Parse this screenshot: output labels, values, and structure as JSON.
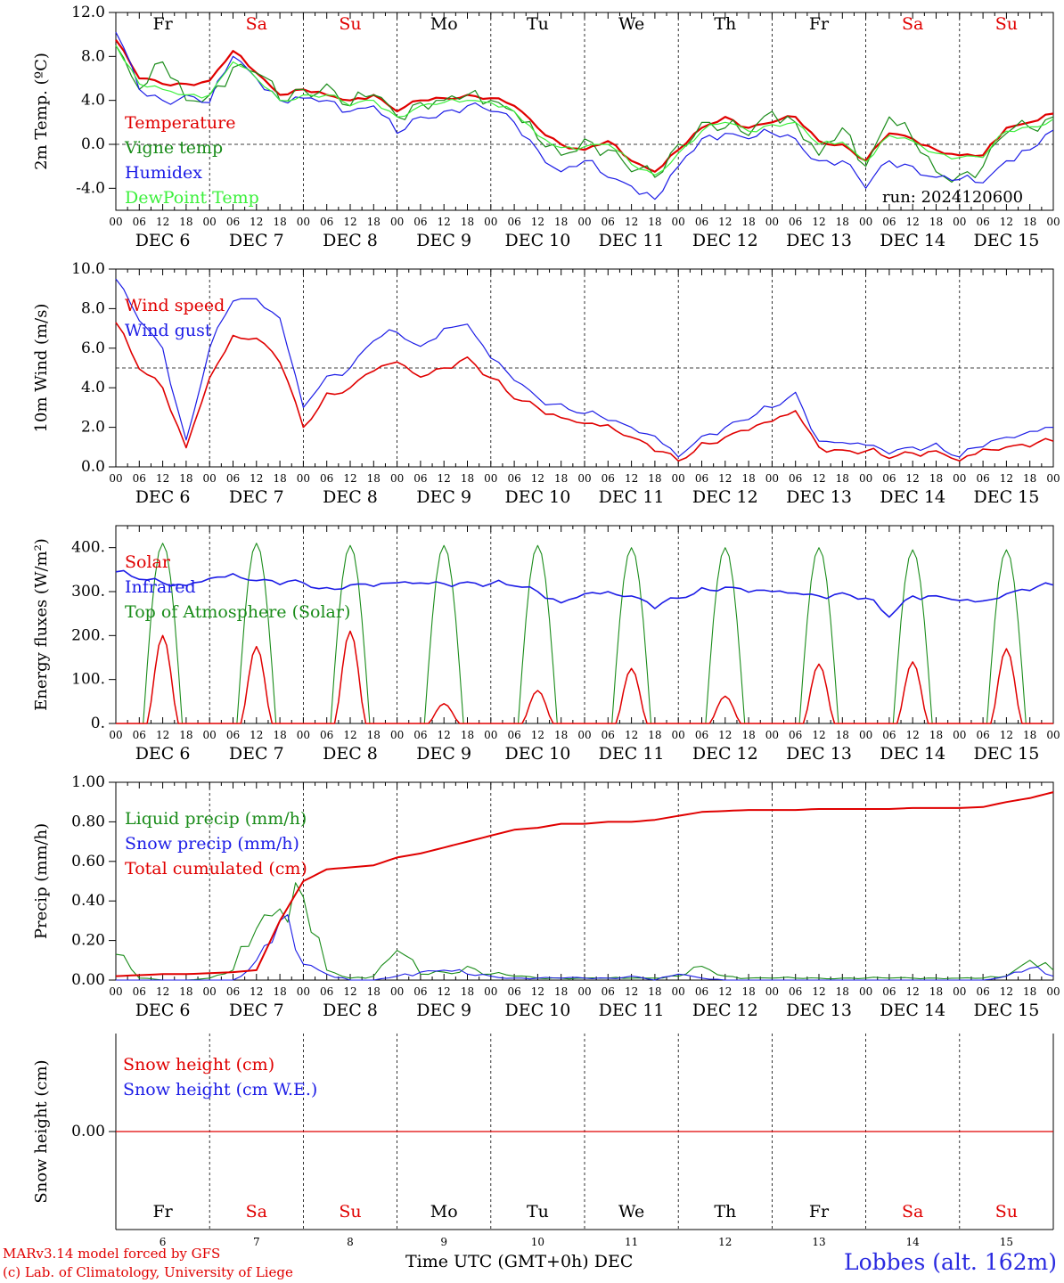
{
  "footer": {
    "credit_line1": "MARv3.14 model forced by GFS",
    "credit_line2": "(c) Lab. of Climatology, University of Liege",
    "xaxis_title": "Time UTC (GMT+0h) DEC",
    "station": "Lobbes (alt. 162m)"
  },
  "colors": {
    "red": "#e00000",
    "green": "#1a8c1a",
    "blue": "#1c1ce6",
    "lightgreen": "#3cf03c",
    "weekend": "#e00000",
    "weekday": "#000000"
  },
  "chart_data": [
    {
      "type": "line",
      "ylabel": "2m Temp. (ºC)",
      "ylim": [
        -6,
        12
      ],
      "ticks": [
        12,
        8,
        4,
        0,
        -4
      ],
      "tick_labels": [
        "12.0",
        "8.0",
        "4.0",
        "0.0",
        "-4.0"
      ],
      "refline": 0,
      "day_labels": [
        "Fr",
        "Sa",
        "Su",
        "Mo",
        "Tu",
        "We",
        "Th",
        "Fr",
        "Sa",
        "Su"
      ],
      "date_labels": [
        "DEC 6",
        "DEC 7",
        "DEC 8",
        "DEC 9",
        "DEC 10",
        "DEC 11",
        "DEC 12",
        "DEC 13",
        "DEC 14",
        "DEC 15"
      ],
      "hour_labels": [
        "00",
        "06",
        "12",
        "18"
      ],
      "annotation": "run: 2024120600",
      "x_hours": [
        0,
        6,
        12,
        18,
        24,
        30,
        36,
        42,
        48,
        54,
        60,
        66,
        72,
        78,
        84,
        90,
        96,
        102,
        108,
        114,
        120,
        126,
        132,
        138,
        144,
        150,
        156,
        162,
        168,
        174,
        180,
        186,
        192,
        198,
        204,
        210,
        216,
        222,
        228,
        234,
        240
      ],
      "series": [
        {
          "name": "Temperature",
          "color": "red",
          "values": [
            9.5,
            6.0,
            5.5,
            5.5,
            5.8,
            8.5,
            6.5,
            4.5,
            5.0,
            4.5,
            4.0,
            4.5,
            3.0,
            4.0,
            4.2,
            4.5,
            4.2,
            3.5,
            1.5,
            0.0,
            -0.5,
            0.3,
            -1.5,
            -2.5,
            -0.5,
            1.5,
            2.5,
            1.5,
            2.0,
            2.5,
            0.3,
            0.0,
            -1.5,
            1.0,
            0.5,
            -0.5,
            -1.0,
            -1.0,
            1.5,
            2.0,
            2.8
          ]
        },
        {
          "name": "Vigne temp",
          "color": "green",
          "values": [
            9.0,
            5.0,
            7.5,
            4.0,
            4.5,
            7.0,
            6.5,
            4.0,
            5.0,
            5.5,
            3.5,
            4.5,
            2.5,
            3.8,
            4.0,
            4.5,
            4.0,
            3.0,
            0.5,
            -1.0,
            0.5,
            -0.5,
            -2.5,
            -3.0,
            0.0,
            2.0,
            1.5,
            0.8,
            3.0,
            2.0,
            -1.0,
            1.5,
            -2.0,
            2.5,
            0.5,
            -2.5,
            -2.8,
            -2.0,
            1.0,
            1.5,
            2.5
          ]
        },
        {
          "name": "Humidex",
          "color": "blue",
          "values": [
            10.2,
            5.0,
            4.0,
            4.5,
            3.8,
            8.0,
            6.0,
            4.0,
            4.2,
            4.0,
            3.0,
            3.5,
            1.0,
            2.5,
            3.0,
            3.5,
            3.0,
            2.0,
            -0.5,
            -2.5,
            -1.5,
            -3.0,
            -3.8,
            -5.0,
            -2.0,
            0.5,
            1.0,
            0.5,
            1.0,
            0.5,
            -1.5,
            -1.5,
            -4.0,
            -1.5,
            -2.0,
            -3.0,
            -3.2,
            -3.5,
            -1.5,
            -0.5,
            1.3
          ]
        },
        {
          "name": "DewPoint Temp",
          "color": "lightgreen",
          "values": [
            9.0,
            5.5,
            5.0,
            4.5,
            4.5,
            7.5,
            6.0,
            4.0,
            4.5,
            4.5,
            3.5,
            4.0,
            2.5,
            3.5,
            3.8,
            4.0,
            3.8,
            3.0,
            0.8,
            -0.3,
            -0.2,
            0.0,
            -1.8,
            -2.8,
            -0.8,
            1.2,
            2.0,
            1.2,
            1.8,
            2.0,
            0.0,
            0.2,
            -1.6,
            0.8,
            0.3,
            -0.8,
            -1.2,
            -1.2,
            1.2,
            1.6,
            2.3
          ]
        }
      ]
    },
    {
      "type": "line",
      "ylabel": "10m Wind (m/s)",
      "ylim": [
        0,
        10
      ],
      "ticks": [
        10,
        8,
        6,
        4,
        2,
        0
      ],
      "tick_labels": [
        "10.0",
        "8.0",
        "6.0",
        "4.0",
        "2.0",
        "0.0"
      ],
      "refline": 5,
      "date_labels": [
        "DEC 6",
        "DEC 7",
        "DEC 8",
        "DEC 9",
        "DEC 10",
        "DEC 11",
        "DEC 12",
        "DEC 13",
        "DEC 14",
        "DEC 15"
      ],
      "hour_labels": [
        "00",
        "06",
        "12",
        "18"
      ],
      "x_hours": [
        0,
        6,
        12,
        18,
        24,
        30,
        36,
        42,
        48,
        54,
        60,
        66,
        72,
        78,
        84,
        90,
        96,
        102,
        108,
        114,
        120,
        126,
        132,
        138,
        144,
        150,
        156,
        162,
        168,
        174,
        180,
        186,
        192,
        198,
        204,
        210,
        216,
        222,
        228,
        234,
        240
      ],
      "series": [
        {
          "name": "Wind speed",
          "color": "red",
          "values": [
            7.3,
            5.0,
            4.0,
            1.0,
            4.5,
            6.5,
            6.5,
            5.5,
            2.0,
            3.5,
            4.0,
            5.0,
            5.3,
            4.5,
            5.0,
            5.5,
            4.5,
            3.5,
            3.0,
            2.5,
            2.2,
            2.0,
            1.5,
            1.0,
            0.3,
            1.0,
            1.5,
            2.0,
            2.3,
            2.8,
            1.0,
            0.8,
            0.8,
            0.5,
            0.7,
            0.8,
            0.3,
            0.8,
            1.0,
            1.2,
            1.3
          ]
        },
        {
          "name": "Wind gust",
          "color": "blue",
          "values": [
            9.5,
            7.5,
            6.0,
            1.2,
            6.0,
            8.5,
            8.5,
            7.5,
            3.0,
            4.5,
            5.0,
            6.5,
            6.8,
            6.0,
            7.0,
            7.2,
            5.5,
            4.5,
            3.5,
            3.0,
            2.7,
            2.5,
            2.0,
            1.5,
            0.5,
            1.5,
            2.0,
            2.5,
            3.0,
            3.7,
            1.3,
            1.2,
            1.1,
            0.8,
            1.0,
            1.0,
            0.5,
            1.2,
            1.5,
            1.7,
            2.0
          ]
        }
      ]
    },
    {
      "type": "line",
      "ylabel": "Energy fluxes (W/m²)",
      "ylim": [
        0,
        450
      ],
      "ticks": [
        400,
        300,
        200,
        100,
        0
      ],
      "tick_labels": [
        "400.",
        "300.",
        "200.",
        "100.",
        "0."
      ],
      "date_labels": [
        "DEC 6",
        "DEC 7",
        "DEC 8",
        "DEC 9",
        "DEC 10",
        "DEC 11",
        "DEC 12",
        "DEC 13",
        "DEC 14",
        "DEC 15"
      ],
      "hour_labels": [
        "00",
        "06",
        "12",
        "18"
      ],
      "daily_solar_peak": [
        200,
        175,
        210,
        45,
        75,
        125,
        62,
        135,
        140,
        170
      ],
      "daily_toa_peak": [
        410,
        410,
        405,
        405,
        405,
        400,
        400,
        400,
        395,
        395
      ],
      "infrared_x_hours": [
        0,
        6,
        12,
        18,
        24,
        30,
        36,
        42,
        48,
        54,
        60,
        66,
        72,
        78,
        84,
        90,
        96,
        102,
        108,
        114,
        120,
        126,
        132,
        138,
        144,
        150,
        156,
        162,
        168,
        174,
        180,
        186,
        192,
        198,
        204,
        210,
        216,
        222,
        228,
        234,
        240
      ],
      "infrared_values": [
        345,
        330,
        320,
        315,
        330,
        335,
        325,
        325,
        320,
        300,
        315,
        318,
        320,
        318,
        318,
        320,
        318,
        315,
        300,
        275,
        295,
        295,
        290,
        270,
        285,
        300,
        310,
        305,
        300,
        295,
        290,
        295,
        285,
        245,
        290,
        290,
        280,
        275,
        295,
        310,
        315
      ],
      "series_names": [
        "Solar",
        "Infrared",
        "Top of Atmosphere (Solar)"
      ],
      "series_colors": [
        "red",
        "blue",
        "green"
      ]
    },
    {
      "type": "line",
      "ylabel": "Precip (mm/h)",
      "ylim": [
        0,
        1.0
      ],
      "ticks": [
        1.0,
        0.8,
        0.6,
        0.4,
        0.2,
        0
      ],
      "tick_labels": [
        "1.00",
        "0.80",
        "0.60",
        "0.40",
        "0.20",
        "0.00"
      ],
      "date_labels": [
        "DEC 6",
        "DEC 7",
        "DEC 8",
        "DEC 9",
        "DEC 10",
        "DEC 11",
        "DEC 12",
        "DEC 13",
        "DEC 14",
        "DEC 15"
      ],
      "hour_labels": [
        "00",
        "06",
        "12",
        "18"
      ],
      "x_hours": [
        0,
        6,
        12,
        18,
        24,
        30,
        36,
        42,
        48,
        54,
        60,
        66,
        72,
        78,
        84,
        90,
        96,
        102,
        108,
        114,
        120,
        126,
        132,
        138,
        144,
        150,
        156,
        162,
        168,
        174,
        180,
        186,
        192,
        198,
        204,
        210,
        216,
        222,
        228,
        234,
        240
      ],
      "series": [
        {
          "name": "Liquid precip (mm/h)",
          "color": "green",
          "values": [
            0.13,
            0.01,
            0.0,
            0.0,
            0.01,
            0.05,
            0.26,
            0.36,
            0.42,
            0.05,
            0.01,
            0.02,
            0.15,
            0.03,
            0.04,
            0.07,
            0.03,
            0.02,
            0.01,
            0.01,
            0.01,
            0.01,
            0.01,
            0.01,
            0.02,
            0.07,
            0.02,
            0.01,
            0.01,
            0.01,
            0.01,
            0.01,
            0.01,
            0.01,
            0.01,
            0.01,
            0.01,
            0.01,
            0.02,
            0.1,
            0.05
          ]
        },
        {
          "name": "Snow precip (mm/h)",
          "color": "blue",
          "values": [
            0.0,
            0.0,
            0.0,
            0.0,
            0.0,
            0.0,
            0.1,
            0.3,
            0.08,
            0.03,
            0.0,
            0.0,
            0.02,
            0.04,
            0.05,
            0.03,
            0.02,
            0.01,
            0.01,
            0.01,
            0.01,
            0.01,
            0.02,
            0.0,
            0.03,
            0.01,
            0.0,
            0.0,
            0.0,
            0.0,
            0.0,
            0.0,
            0.0,
            0.0,
            0.0,
            0.0,
            0.0,
            0.0,
            0.02,
            0.06,
            0.02
          ]
        },
        {
          "name": "Total cumulated (cm)",
          "color": "red",
          "values": [
            0.02,
            0.025,
            0.03,
            0.03,
            0.035,
            0.04,
            0.05,
            0.3,
            0.5,
            0.56,
            0.57,
            0.58,
            0.62,
            0.64,
            0.67,
            0.7,
            0.73,
            0.76,
            0.77,
            0.79,
            0.79,
            0.8,
            0.8,
            0.81,
            0.83,
            0.85,
            0.855,
            0.86,
            0.86,
            0.86,
            0.865,
            0.865,
            0.865,
            0.865,
            0.87,
            0.87,
            0.87,
            0.875,
            0.9,
            0.92,
            0.95
          ]
        }
      ]
    },
    {
      "type": "line",
      "ylabel": "Snow height (cm)",
      "tick_labels": [
        "0.00"
      ],
      "day_labels": [
        "Fr",
        "Sa",
        "Su",
        "Mo",
        "Tu",
        "We",
        "Th",
        "Fr",
        "Sa",
        "Su"
      ],
      "day_numbers": [
        "6",
        "7",
        "8",
        "9",
        "10",
        "11",
        "12",
        "13",
        "14",
        "15"
      ],
      "series": [
        {
          "name": "Snow height (cm)",
          "color": "red",
          "values": [
            0,
            0
          ]
        },
        {
          "name": "Snow height (cm W.E.)",
          "color": "blue",
          "values": []
        }
      ]
    }
  ]
}
